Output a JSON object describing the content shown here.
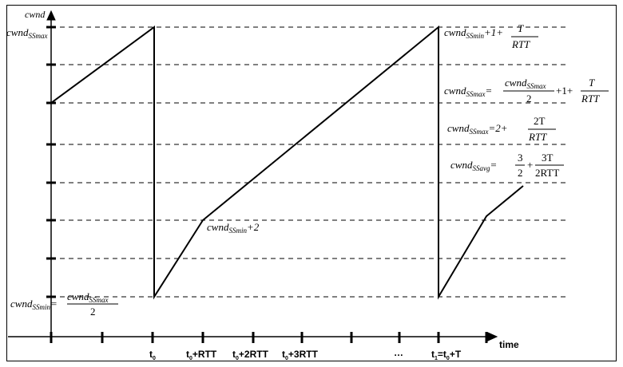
{
  "diagram": {
    "y_axis_label": "cwnd",
    "x_axis_label": "time",
    "x_ticks": [
      "t",
      "t",
      "t",
      "t",
      "…",
      "t"
    ],
    "x_tick_subs": [
      "0",
      "0",
      "0",
      "0",
      "1"
    ],
    "x_tick_suffixes": [
      "+RTT",
      "+2RTT",
      "+3RTT",
      "=t",
      "+T"
    ],
    "left_labels": {
      "max": {
        "base": "cwnd",
        "sub": "SSmax"
      },
      "min": {
        "base": "cwnd",
        "sub": "SSmin",
        "eq": "=",
        "num_base": "cwnd",
        "num_sub": "SSmax",
        "den": "2"
      }
    },
    "mid_label": {
      "base": "cwnd",
      "sub": "SSmin",
      "rest": "+2"
    },
    "right_labels": [
      {
        "base": "cwnd",
        "sub": "SSmin",
        "rest": "+1+",
        "num": "T",
        "den": "RTT"
      },
      {
        "base": "cwnd",
        "sub": "SSmax",
        "eq": "=",
        "num_base": "cwnd",
        "num_sub": "SSmax",
        "den": "2",
        "rest": "+1+",
        "num2": "T",
        "den2": "RTT"
      },
      {
        "base": "cwnd",
        "sub": "SSmax",
        "rest": "=2+",
        "num": "2T",
        "den": "RTT"
      },
      {
        "base": "cwnd",
        "sub": "SSavg",
        "eq": "=",
        "num": "3",
        "den": "2",
        "rest": "+",
        "num2": "3T",
        "den2": "2RTT"
      }
    ]
  }
}
